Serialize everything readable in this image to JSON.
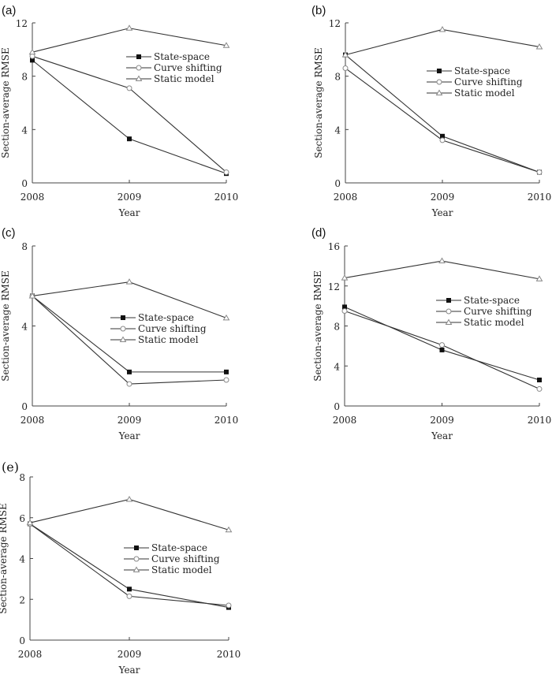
{
  "chart_data": [
    {
      "panel_label": "(a)",
      "type": "line",
      "x": [
        "2008",
        "2009",
        "2010"
      ],
      "xlabel": "Year",
      "ylabel": "Section-average RMSE",
      "ylim": [
        0,
        12
      ],
      "yticks": [
        0,
        4,
        8,
        12
      ],
      "legend_position": "center-right",
      "series": [
        {
          "name": "State-space",
          "marker": "filled-square",
          "values": [
            9.2,
            3.3,
            0.7
          ]
        },
        {
          "name": "Curve shifting",
          "marker": "open-circle",
          "values": [
            9.5,
            7.1,
            0.8
          ]
        },
        {
          "name": "Static model",
          "marker": "open-triangle",
          "values": [
            9.8,
            11.6,
            10.3
          ]
        }
      ]
    },
    {
      "panel_label": "(b)",
      "type": "line",
      "x": [
        "2008",
        "2009",
        "2010"
      ],
      "xlabel": "Year",
      "ylabel": "Section-average RMSE",
      "ylim": [
        0,
        12
      ],
      "yticks": [
        0,
        4,
        8,
        12
      ],
      "legend_position": "center-right",
      "series": [
        {
          "name": "State-space",
          "marker": "filled-square",
          "values": [
            9.6,
            3.5,
            0.8
          ]
        },
        {
          "name": "Curve shifting",
          "marker": "open-circle",
          "values": [
            8.6,
            3.2,
            0.8
          ]
        },
        {
          "name": "Static model",
          "marker": "open-triangle",
          "values": [
            9.6,
            11.5,
            10.2
          ]
        }
      ]
    },
    {
      "panel_label": "(c)",
      "type": "line",
      "x": [
        "2008",
        "2009",
        "2010"
      ],
      "xlabel": "Year",
      "ylabel": "Section-average RMSE",
      "ylim": [
        0,
        8
      ],
      "yticks": [
        0,
        4,
        8
      ],
      "legend_position": "center-right",
      "series": [
        {
          "name": "State-space",
          "marker": "filled-square",
          "values": [
            5.5,
            1.7,
            1.7
          ]
        },
        {
          "name": "Curve shifting",
          "marker": "open-circle",
          "values": [
            5.5,
            1.1,
            1.3
          ]
        },
        {
          "name": "Static model",
          "marker": "open-triangle",
          "values": [
            5.5,
            6.2,
            4.4
          ]
        }
      ]
    },
    {
      "panel_label": "(d)",
      "type": "line",
      "x": [
        "2008",
        "2009",
        "2010"
      ],
      "xlabel": "Year",
      "ylabel": "Section-average RMSE",
      "ylim": [
        0,
        16
      ],
      "yticks": [
        0,
        4,
        8,
        12,
        16
      ],
      "legend_position": "center-right",
      "series": [
        {
          "name": "State-space",
          "marker": "filled-square",
          "values": [
            9.9,
            5.6,
            2.6
          ]
        },
        {
          "name": "Curve shifting",
          "marker": "open-circle",
          "values": [
            9.5,
            6.1,
            1.7
          ]
        },
        {
          "name": "Static model",
          "marker": "open-triangle",
          "values": [
            12.8,
            14.5,
            12.7
          ]
        }
      ]
    },
    {
      "panel_label": "(e)",
      "type": "line",
      "x": [
        "2008",
        "2009",
        "2010"
      ],
      "xlabel": "Year",
      "ylabel": "Section-average RMSE",
      "ylim": [
        0,
        8
      ],
      "yticks": [
        0,
        2,
        4,
        6,
        8
      ],
      "legend_position": "center-right",
      "series": [
        {
          "name": "State-space",
          "marker": "filled-square",
          "values": [
            5.7,
            2.5,
            1.6
          ]
        },
        {
          "name": "Curve shifting",
          "marker": "open-circle",
          "values": [
            5.7,
            2.15,
            1.7
          ]
        },
        {
          "name": "Static model",
          "marker": "open-triangle",
          "values": [
            5.75,
            6.9,
            5.4
          ]
        }
      ]
    }
  ],
  "colors": {
    "line": "#333333",
    "marker_fill": "#111111",
    "open_marker": "#888888"
  }
}
